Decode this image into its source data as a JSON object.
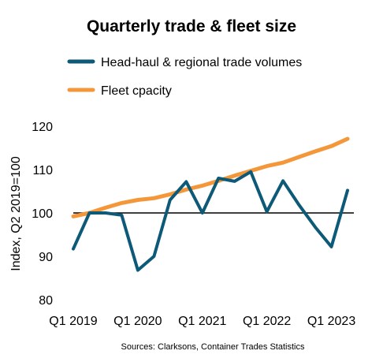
{
  "chart_data": {
    "type": "line",
    "title": "Quarterly trade & fleet size",
    "ylabel": "Index, Q2 2019=100",
    "xlabel": "",
    "source": "Sources: Clarksons, Container Trades Statistics",
    "ylim": [
      80,
      120
    ],
    "yticks": [
      80,
      90,
      100,
      110,
      120
    ],
    "baseline": 100,
    "grid": false,
    "legend_position": "top-left",
    "x": [
      "Q1 2019",
      "Q2 2019",
      "Q3 2019",
      "Q4 2019",
      "Q1 2020",
      "Q2 2020",
      "Q3 2020",
      "Q4 2020",
      "Q1 2021",
      "Q2 2021",
      "Q3 2021",
      "Q4 2021",
      "Q1 2022",
      "Q2 2022",
      "Q3 2022",
      "Q4 2022",
      "Q1 2023",
      "Q2 2023"
    ],
    "xtick_labels": [
      {
        "index": 0,
        "label": "Q1 2019"
      },
      {
        "index": 4,
        "label": "Q1 2020"
      },
      {
        "index": 8,
        "label": "Q1 2021"
      },
      {
        "index": 12,
        "label": "Q1 2022"
      },
      {
        "index": 16,
        "label": "Q1 2023"
      }
    ],
    "series": [
      {
        "name": "Head-haul & regional trade volumes",
        "color": "#0d5a78",
        "values": [
          91.7,
          100.0,
          100.0,
          99.5,
          86.8,
          90.0,
          103.0,
          107.2,
          100.0,
          108.0,
          107.3,
          109.5,
          100.3,
          107.4,
          101.8,
          96.7,
          92.2,
          105.2
        ]
      },
      {
        "name": "Fleet cpacity",
        "color": "#f4973a",
        "values": [
          99.2,
          100.0,
          101.2,
          102.3,
          103.0,
          103.4,
          104.3,
          105.4,
          106.3,
          107.4,
          108.6,
          109.7,
          110.8,
          111.6,
          112.9,
          114.2,
          115.4,
          117.1
        ]
      }
    ]
  }
}
